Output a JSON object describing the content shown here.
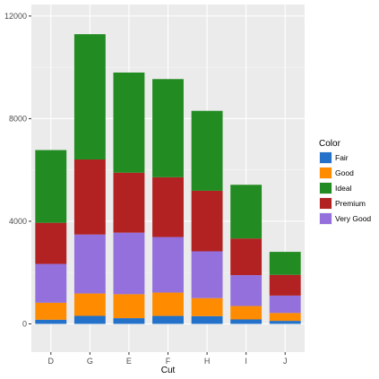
{
  "chart_data": {
    "type": "bar",
    "stacked": true,
    "xlabel": "Cut",
    "ylabel": "",
    "ylim": [
      -1100,
      12450
    ],
    "yticks": [
      0,
      4000,
      8000,
      12000
    ],
    "ytick_labels": [
      "0",
      "4000",
      "8000",
      "12000"
    ],
    "categories": [
      "D",
      "G",
      "E",
      "F",
      "H",
      "I",
      "J"
    ],
    "grid": true,
    "legend": {
      "title": "Color",
      "position": "right"
    },
    "stack_order": [
      "Fair",
      "Good",
      "Very Good",
      "Premium",
      "Ideal"
    ],
    "series": [
      {
        "name": "Fair",
        "color": "#2371c9",
        "values": [
          163,
          314,
          224,
          312,
          303,
          175,
          119
        ]
      },
      {
        "name": "Good",
        "color": "#ff8c00",
        "values": [
          662,
          871,
          933,
          909,
          702,
          522,
          307
        ]
      },
      {
        "name": "Very Good",
        "color": "#9370db",
        "values": [
          1513,
          2299,
          2400,
          2164,
          1824,
          1204,
          678
        ]
      },
      {
        "name": "Premium",
        "color": "#b22222",
        "values": [
          1603,
          2924,
          2337,
          2331,
          2360,
          1428,
          808
        ]
      },
      {
        "name": "Ideal",
        "color": "#228b22",
        "values": [
          2834,
          4884,
          3903,
          3826,
          3115,
          2093,
          896
        ]
      }
    ],
    "legend_order": [
      "Fair",
      "Good",
      "Ideal",
      "Premium",
      "Very Good"
    ]
  }
}
